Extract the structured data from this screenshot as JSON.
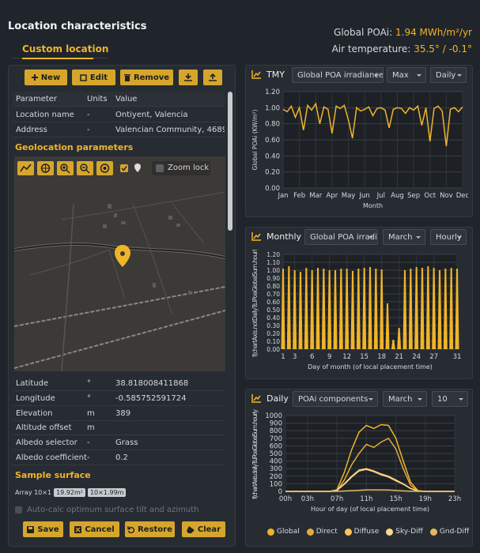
{
  "header": {
    "title": "Location characteristics",
    "poa_label": "Global POAi:",
    "poa_value": "1.94 MWh/m²/yr",
    "temp_label": "Air temperature:",
    "temp_value": "35.5° / -0.1°"
  },
  "tab": "Custom location",
  "toolbar": {
    "new": "New",
    "edit": "Edit",
    "remove": "Remove"
  },
  "table": {
    "columns": [
      "Parameter",
      "Units",
      "Value"
    ],
    "rows": [
      [
        "Location name",
        "-",
        "Ontiyent, Valencia"
      ],
      [
        "Address",
        "-",
        "Valencian Community, 4689..."
      ]
    ]
  },
  "geolocation": {
    "title": "Geolocation parameters",
    "zoom_lock": "Zoom lock"
  },
  "params": {
    "rows": [
      {
        "name": "Latitude",
        "unit": "°",
        "value": "38.818008411868"
      },
      {
        "name": "Longitude",
        "unit": "°",
        "value": "-0.585752591724"
      },
      {
        "name": "Elevation",
        "unit": "m",
        "value": "389"
      },
      {
        "name": "Altitude offset",
        "unit": "m"
      },
      {
        "name": "Albedo selector",
        "unit": "-",
        "value": "Grass"
      },
      {
        "name": "Albedo coefficient",
        "unit": "-",
        "value": "0.2"
      }
    ]
  },
  "sample_surface": {
    "title": "Sample surface",
    "array": "Array 10×1",
    "badges": [
      "19.92m²",
      "10×1.99m"
    ]
  },
  "auto_calc": "Auto-calc optimum surface tilt and azimuth",
  "actions": [
    "Save",
    "Cancel",
    "Restore",
    "Clear"
  ],
  "chart_data": [
    {
      "type": "line",
      "title": "TMY",
      "controls": [
        "Global POA irradiance",
        "Max",
        "Daily"
      ],
      "xlabel": "Month",
      "ylabel": "Global POAi (KW/m²)",
      "color": "#f0b429",
      "grid": true,
      "x": [
        0,
        0.25,
        0.5,
        0.75,
        1,
        1.25,
        1.5,
        1.75,
        2,
        2.25,
        2.5,
        2.75,
        3,
        3.25,
        3.5,
        3.75,
        4,
        4.25,
        4.5,
        4.75,
        5,
        5.25,
        5.5,
        5.75,
        6,
        6.25,
        6.5,
        6.75,
        7,
        7.25,
        7.5,
        7.75,
        8,
        8.25,
        8.5,
        8.75,
        9,
        9.25,
        9.5,
        9.75,
        10,
        10.25,
        10.5,
        10.75,
        11
      ],
      "values": [
        0.98,
        0.95,
        1.02,
        0.88,
        1.0,
        0.72,
        1.03,
        0.97,
        1.05,
        0.8,
        1.01,
        0.98,
        0.68,
        1.02,
        0.99,
        1.03,
        0.85,
        0.62,
        1.0,
        0.96,
        0.98,
        1.01,
        0.9,
        0.99,
        1.0,
        0.97,
        0.75,
        0.98,
        1.0,
        0.99,
        0.93,
        1.0,
        0.97,
        1.02,
        0.78,
        1.0,
        0.58,
        0.99,
        1.02,
        0.96,
        0.52,
        0.98,
        1.0,
        0.95,
        1.01
      ],
      "xlim": [
        0,
        11
      ],
      "xticks": [
        {
          "value": 0,
          "label": "Jan"
        },
        {
          "value": 1,
          "label": "Feb"
        },
        {
          "value": 2,
          "label": "Mar"
        },
        {
          "value": 3,
          "label": "Apr"
        },
        {
          "value": 4,
          "label": "May"
        },
        {
          "value": 5,
          "label": "Jun"
        },
        {
          "value": 6,
          "label": "Jul"
        },
        {
          "value": 7,
          "label": "Aug"
        },
        {
          "value": 8,
          "label": "Sep"
        },
        {
          "value": 9,
          "label": "Oct"
        },
        {
          "value": 10,
          "label": "Nov"
        },
        {
          "value": 11,
          "label": "Dec"
        }
      ],
      "ylim": [
        0,
        1.2
      ],
      "yticks": [
        {
          "value": 0,
          "label": "0.00"
        },
        {
          "value": 0.2,
          "label": "0.20"
        },
        {
          "value": 0.4,
          "label": "0.40"
        },
        {
          "value": 0.6,
          "label": "0.60"
        },
        {
          "value": 0.8,
          "label": "0.80"
        },
        {
          "value": 1,
          "label": "1.00"
        },
        {
          "value": 1.2,
          "label": "1.20"
        }
      ]
    },
    {
      "type": "bar",
      "title": "Monthly",
      "controls": [
        "Global POA irradiance",
        "March",
        "Hourly"
      ],
      "xlabel": "Day of month (of local placement time)",
      "ylabel": "f(chartAxis.notDailyTs.lPoaGlobalSum.hourly",
      "color": "#f0b429",
      "grid": true,
      "x": [
        1,
        2,
        3,
        4,
        5,
        6,
        7,
        8,
        9,
        10,
        11,
        12,
        13,
        14,
        15,
        16,
        17,
        18,
        19,
        20,
        21,
        22,
        23,
        24,
        25,
        26,
        27,
        28,
        29,
        30,
        31
      ],
      "values": [
        1.02,
        1.05,
        1.0,
        0.98,
        1.03,
        1.0,
        1.03,
        1.02,
        1.0,
        1.0,
        1.02,
        1.02,
        0.99,
        1.02,
        1.03,
        1.04,
        1.02,
        1.01,
        0.58,
        0.12,
        0.27,
        1.0,
        1.02,
        1.04,
        1.03,
        1.05,
        1.03,
        1.0,
        1.02,
        1.03,
        1.02
      ],
      "xlim": [
        1,
        31
      ],
      "xticks": [
        1,
        3,
        6,
        9,
        12,
        15,
        18,
        21,
        24,
        27,
        31
      ],
      "ylim": [
        0,
        1.2
      ],
      "yticks": [
        {
          "value": 0,
          "label": "0.00"
        },
        {
          "value": 0.1,
          "label": "0.10"
        },
        {
          "value": 0.2,
          "label": "0.20"
        },
        {
          "value": 0.3,
          "label": "0.30"
        },
        {
          "value": 0.4,
          "label": "0.40"
        },
        {
          "value": 0.5,
          "label": "0.50"
        },
        {
          "value": 0.6,
          "label": "0.60"
        },
        {
          "value": 0.7,
          "label": "0.70"
        },
        {
          "value": 0.8,
          "label": "0.80"
        },
        {
          "value": 0.9,
          "label": "0.90"
        },
        {
          "value": 1,
          "label": "1.00"
        },
        {
          "value": 1.1,
          "label": "1.10"
        },
        {
          "value": 1.2,
          "label": "1.20"
        }
      ]
    },
    {
      "type": "line",
      "title": "Daily",
      "controls": [
        "POAi components",
        "March",
        "10"
      ],
      "xlabel": "Hour of day (of local placement time)",
      "ylabel": "f(chartAxis.dailyTs.lPoaGlobalSum.hourly)",
      "grid": true,
      "x": [
        0,
        1,
        2,
        3,
        4,
        5,
        6,
        7,
        8,
        9,
        10,
        11,
        12,
        13,
        14,
        15,
        16,
        17,
        18,
        19,
        20,
        21,
        22,
        23
      ],
      "series": [
        {
          "name": "Global",
          "color": "#f0b429",
          "values": [
            0,
            0,
            0,
            0,
            0,
            0,
            0,
            20,
            250,
            550,
            780,
            870,
            830,
            880,
            870,
            700,
            400,
            120,
            10,
            0,
            0,
            0,
            0,
            0
          ]
        },
        {
          "name": "Direct",
          "color": "#e9a93a",
          "values": [
            0,
            0,
            0,
            0,
            0,
            0,
            0,
            5,
            150,
            350,
            500,
            620,
            580,
            650,
            700,
            560,
            300,
            80,
            5,
            0,
            0,
            0,
            0,
            0
          ]
        },
        {
          "name": "Diffuse",
          "color": "#f6c65a",
          "values": [
            0,
            0,
            0,
            0,
            0,
            0,
            0,
            15,
            100,
            200,
            280,
            300,
            270,
            230,
            200,
            150,
            100,
            40,
            5,
            0,
            0,
            0,
            0,
            0
          ]
        },
        {
          "name": "Sky-Diff",
          "color": "#f8d98c",
          "values": [
            0,
            0,
            0,
            0,
            0,
            0,
            0,
            14,
            95,
            190,
            270,
            290,
            260,
            220,
            190,
            140,
            95,
            38,
            5,
            0,
            0,
            0,
            0,
            0
          ]
        },
        {
          "name": "Gnd-Diff",
          "color": "#e8b860",
          "values": [
            0,
            0,
            0,
            0,
            0,
            0,
            0,
            1,
            5,
            10,
            15,
            20,
            20,
            20,
            18,
            12,
            6,
            2,
            0,
            0,
            0,
            0,
            0,
            0
          ]
        }
      ],
      "xlim": [
        0,
        23
      ],
      "xticks": [
        {
          "value": 0,
          "label": "00h"
        },
        {
          "value": 3,
          "label": "03h"
        },
        {
          "value": 7,
          "label": "07h"
        },
        {
          "value": 11,
          "label": "11h"
        },
        {
          "value": 15,
          "label": "15h"
        },
        {
          "value": 19,
          "label": "19h"
        },
        {
          "value": 23,
          "label": "23h"
        }
      ],
      "ylim": [
        0,
        1000
      ],
      "yticks": [
        0,
        100,
        200,
        300,
        400,
        500,
        600,
        700,
        800,
        900,
        1000
      ]
    }
  ]
}
